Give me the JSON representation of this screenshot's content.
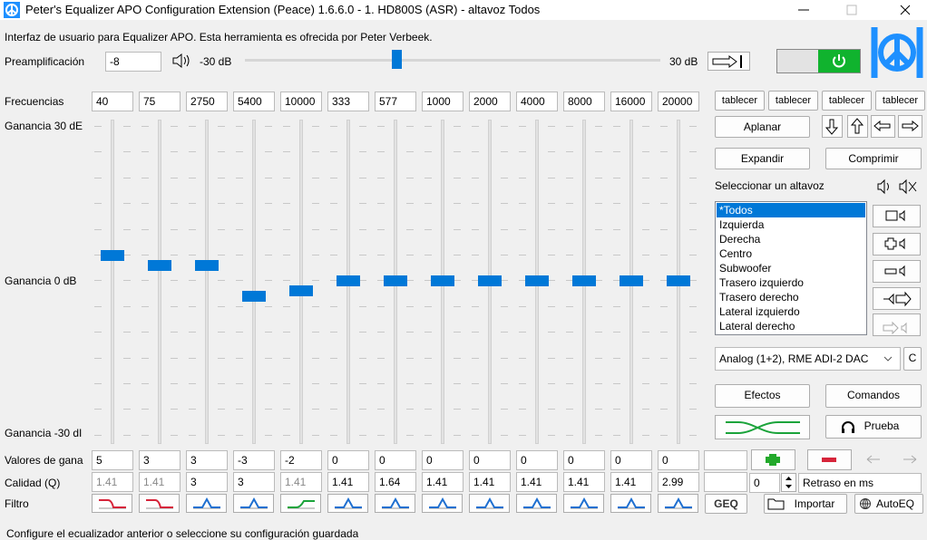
{
  "title_bar": {
    "title": "Peter's Equalizer APO Configuration Extension (Peace) 1.6.6.0 - 1. HD800S (ASR) - altavoz Todos"
  },
  "header": {
    "description": "Interfaz de usuario para Equalizer APO. Esta herramienta es ofrecida por Peter Verbeek."
  },
  "preamp": {
    "label": "Preamplificación",
    "value": -8,
    "min_label": "-30 dB",
    "max_label": "30 dB"
  },
  "bands": {
    "label": "Frecuencias",
    "frequencies": [
      40,
      75,
      2750,
      5400,
      10000,
      333,
      577,
      1000,
      2000,
      4000,
      8000,
      16000,
      20000
    ],
    "gain_top": "Ganancia 30 dE",
    "gain_mid": "Ganancia 0 dB",
    "gain_bottom": "Ganancia -30 dI",
    "gains_label": "Valores de gana",
    "gains": [
      5,
      3,
      3,
      -3,
      -2,
      0,
      0,
      0,
      0,
      0,
      0,
      0,
      0
    ],
    "quality_label": "Calidad (Q)",
    "quality": [
      "1.41",
      "1.41",
      "3",
      "3",
      "1.41",
      "1.41",
      "1.64",
      "1.41",
      "1.41",
      "1.41",
      "1.41",
      "1.41",
      "2.99"
    ],
    "filter_label": "Filtro"
  },
  "panel": {
    "tabs": [
      "tablecer",
      "tablecer",
      "tablecer",
      "tablecer"
    ],
    "flatten": "Aplanar",
    "expand": "Expandir",
    "compress": "Comprimir",
    "speaker_label": "Seleccionar un altavoz",
    "speakers": [
      "*Todos",
      "Izquierda",
      "Derecha",
      "Centro",
      "Subwoofer",
      "Trasero izquierdo",
      "Trasero derecho",
      "Lateral izquierdo",
      "Lateral derecho"
    ],
    "device": "Analog (1+2), RME ADI-2 DAC",
    "device_button": "C",
    "effects": "Efectos",
    "commands": "Comandos",
    "test": "Prueba",
    "delay_value": "0",
    "delay_label": "Retraso en ms",
    "geq": "GEQ",
    "import": "Importar",
    "autoeq": "AutoEQ"
  },
  "status": "Configure el ecualizador anterior o seleccione su configuración guardada"
}
